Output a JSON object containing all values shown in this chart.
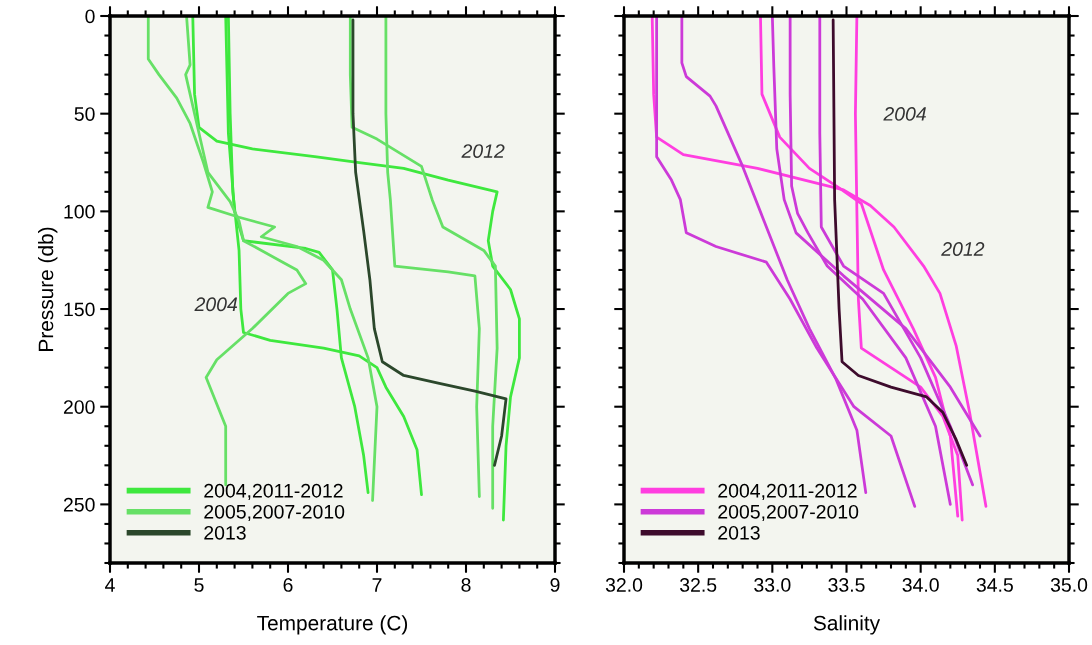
{
  "chart_data": [
    {
      "type": "line",
      "xlabel": "Temperature (C)",
      "ylabel": "Pressure (db)",
      "xlim": [
        4,
        9
      ],
      "xticks": [
        4,
        5,
        6,
        7,
        8,
        9
      ],
      "ylim": [
        280,
        0
      ],
      "yticks": [
        0,
        50,
        100,
        150,
        200,
        250
      ],
      "legend": "bottom left",
      "grid": false,
      "annotations": [
        "2012",
        "2004"
      ],
      "series": [
        {
          "name": "2004,2011-2012",
          "color": "#3ee83e",
          "x": [
            4.93,
            4.95,
            5.0,
            5.2,
            5.6,
            6.3,
            6.8,
            7.3,
            7.8,
            8.35,
            8.3,
            8.25,
            8.3,
            8.5,
            8.6,
            8.6,
            8.5,
            8.45,
            8.42
          ],
          "values": [
            0,
            40,
            57,
            64,
            68,
            72,
            75,
            78,
            84,
            90,
            100,
            115,
            128,
            140,
            155,
            175,
            195,
            220,
            258
          ]
        },
        {
          "color": "#3ee83e",
          "x": [
            5.33,
            5.35,
            5.38,
            5.45,
            5.47,
            5.5,
            5.8,
            6.4,
            6.8,
            7.0,
            7.1,
            7.3,
            7.45,
            7.5
          ],
          "values": [
            0,
            50,
            90,
            120,
            150,
            162,
            166,
            170,
            174,
            180,
            190,
            205,
            222,
            245
          ]
        },
        {
          "color": "#3ee83e",
          "x": [
            5.3,
            5.33,
            5.4,
            5.5,
            6.2,
            6.35,
            6.5,
            6.55,
            6.6,
            6.75,
            6.85,
            6.9
          ],
          "values": [
            0,
            60,
            100,
            115,
            119,
            121,
            130,
            150,
            175,
            200,
            225,
            244
          ]
        },
        {
          "name": "2005,2007-2010",
          "color": "#66e066",
          "x": [
            7.1,
            7.1,
            7.12,
            7.15,
            7.2,
            7.8,
            8.1,
            8.15,
            8.12,
            8.15
          ],
          "values": [
            0,
            50,
            80,
            94,
            128,
            131,
            133,
            160,
            200,
            246
          ]
        },
        {
          "color": "#66e066",
          "x": [
            6.7,
            6.7,
            6.72,
            7.0,
            7.5,
            7.62,
            7.74,
            8.2,
            8.33,
            8.35,
            8.3,
            8.3
          ],
          "values": [
            0,
            30,
            57,
            63,
            77,
            94,
            108,
            120,
            128,
            170,
            210,
            252
          ]
        },
        {
          "color": "#66e066",
          "x": [
            4.43,
            4.43,
            4.55,
            4.75,
            4.9,
            5.05,
            5.15,
            5.1,
            5.45,
            5.85,
            5.7,
            6.1,
            6.4,
            6.6,
            6.7,
            6.9,
            7.0,
            6.95
          ],
          "values": [
            0,
            22,
            30,
            42,
            55,
            75,
            90,
            98,
            103,
            108,
            113,
            118,
            125,
            135,
            150,
            175,
            200,
            248
          ]
        },
        {
          "color": "#66e066",
          "x": [
            4.86,
            4.9,
            4.85,
            5.0,
            5.1,
            5.35,
            5.45,
            5.5,
            5.9,
            6.1,
            6.2,
            6.0,
            5.6,
            5.2,
            5.08,
            5.3,
            5.3
          ],
          "values": [
            0,
            25,
            30,
            60,
            80,
            95,
            105,
            115,
            125,
            130,
            137,
            142,
            160,
            176,
            185,
            210,
            240
          ]
        },
        {
          "name": "2013",
          "color": "#2b472b",
          "x": [
            6.73,
            6.73,
            6.76,
            6.85,
            6.92,
            6.97,
            7.06,
            7.3,
            7.7,
            8.1,
            8.45,
            8.4,
            8.32
          ],
          "values": [
            2,
            50,
            80,
            110,
            135,
            160,
            177,
            184,
            188,
            192,
            196,
            215,
            230
          ]
        }
      ]
    },
    {
      "type": "line",
      "xlabel": "Salinity",
      "xlim": [
        32.0,
        35.0
      ],
      "xticks": [
        {
          "value": 32.0,
          "label": "32.0"
        },
        32.5,
        {
          "value": 33.0,
          "label": "33.0"
        },
        33.5,
        {
          "value": 34.0,
          "label": "34.0"
        },
        34.5,
        {
          "value": 35.0,
          "label": "35.0"
        }
      ],
      "ylim": [
        280,
        0
      ],
      "yticks": [
        0,
        50,
        100,
        150,
        200,
        250
      ],
      "tick_labels": "x",
      "legend": "bottom left",
      "grid": false,
      "annotations": [
        "2004",
        "2012"
      ],
      "series": [
        {
          "name": "2004,2011-2012",
          "color": "#ff3ee0",
          "x": [
            32.19,
            32.2,
            32.22,
            32.3,
            32.4,
            32.9,
            33.48,
            33.66,
            33.82,
            34.02,
            34.13,
            34.24,
            34.33,
            34.44
          ],
          "values": [
            0,
            40,
            62,
            66,
            71,
            78,
            89,
            97,
            108,
            128,
            142,
            169,
            203,
            251
          ]
        },
        {
          "color": "#ff3ee0",
          "x": [
            32.92,
            32.93,
            33.05,
            33.25,
            33.45,
            33.6,
            33.75,
            33.95,
            34.1,
            34.2,
            34.25
          ],
          "values": [
            0,
            40,
            62,
            78,
            88,
            96,
            130,
            160,
            185,
            215,
            256
          ]
        },
        {
          "color": "#ff3ee0",
          "x": [
            33.57,
            33.56,
            33.57,
            33.58,
            33.6,
            33.8,
            34.0,
            34.15,
            34.25,
            34.28
          ],
          "values": [
            0,
            50,
            100,
            145,
            170,
            180,
            190,
            205,
            225,
            258
          ]
        },
        {
          "name": "2005,2007-2010",
          "color": "#cc3ad8",
          "x": [
            32.39,
            32.39,
            32.42,
            32.58,
            32.62,
            32.8,
            32.96,
            33.1,
            33.25,
            33.43,
            33.57,
            33.63
          ],
          "values": [
            0,
            24,
            31,
            41,
            46,
            77,
            108,
            135,
            160,
            186,
            212,
            244
          ]
        },
        {
          "color": "#cc3ad8",
          "x": [
            32.22,
            32.22,
            32.32,
            32.38,
            32.42,
            32.62,
            32.96,
            33.12,
            33.3,
            33.55,
            33.8,
            33.96
          ],
          "values": [
            0,
            72,
            84,
            94,
            111,
            118,
            126,
            145,
            170,
            200,
            215,
            251
          ]
        },
        {
          "color": "#cc3ad8",
          "x": [
            33.12,
            33.12,
            33.13,
            33.17,
            33.24,
            33.37,
            33.61,
            33.9,
            34.1,
            34.2
          ],
          "values": [
            0,
            40,
            87,
            101,
            111,
            128,
            145,
            175,
            210,
            250
          ]
        },
        {
          "color": "#cc3ad8",
          "x": [
            33.32,
            33.32,
            33.33,
            33.48,
            33.75,
            34.0,
            34.2,
            34.35
          ],
          "values": [
            0,
            60,
            108,
            128,
            142,
            175,
            210,
            240
          ]
        },
        {
          "color": "#cc3ad8",
          "x": [
            33.0,
            33.01,
            33.03,
            33.08,
            33.16,
            33.48,
            33.9,
            34.2,
            34.4
          ],
          "values": [
            0,
            26,
            68,
            94,
            111,
            133,
            160,
            190,
            215
          ]
        },
        {
          "name": "2013",
          "color": "#3d0b2c",
          "x": [
            33.41,
            33.42,
            33.45,
            33.47,
            33.58,
            33.8,
            34.04,
            34.15,
            34.24,
            34.31
          ],
          "values": [
            2,
            94,
            150,
            177,
            184,
            190,
            195,
            203,
            217,
            230
          ]
        }
      ]
    }
  ]
}
